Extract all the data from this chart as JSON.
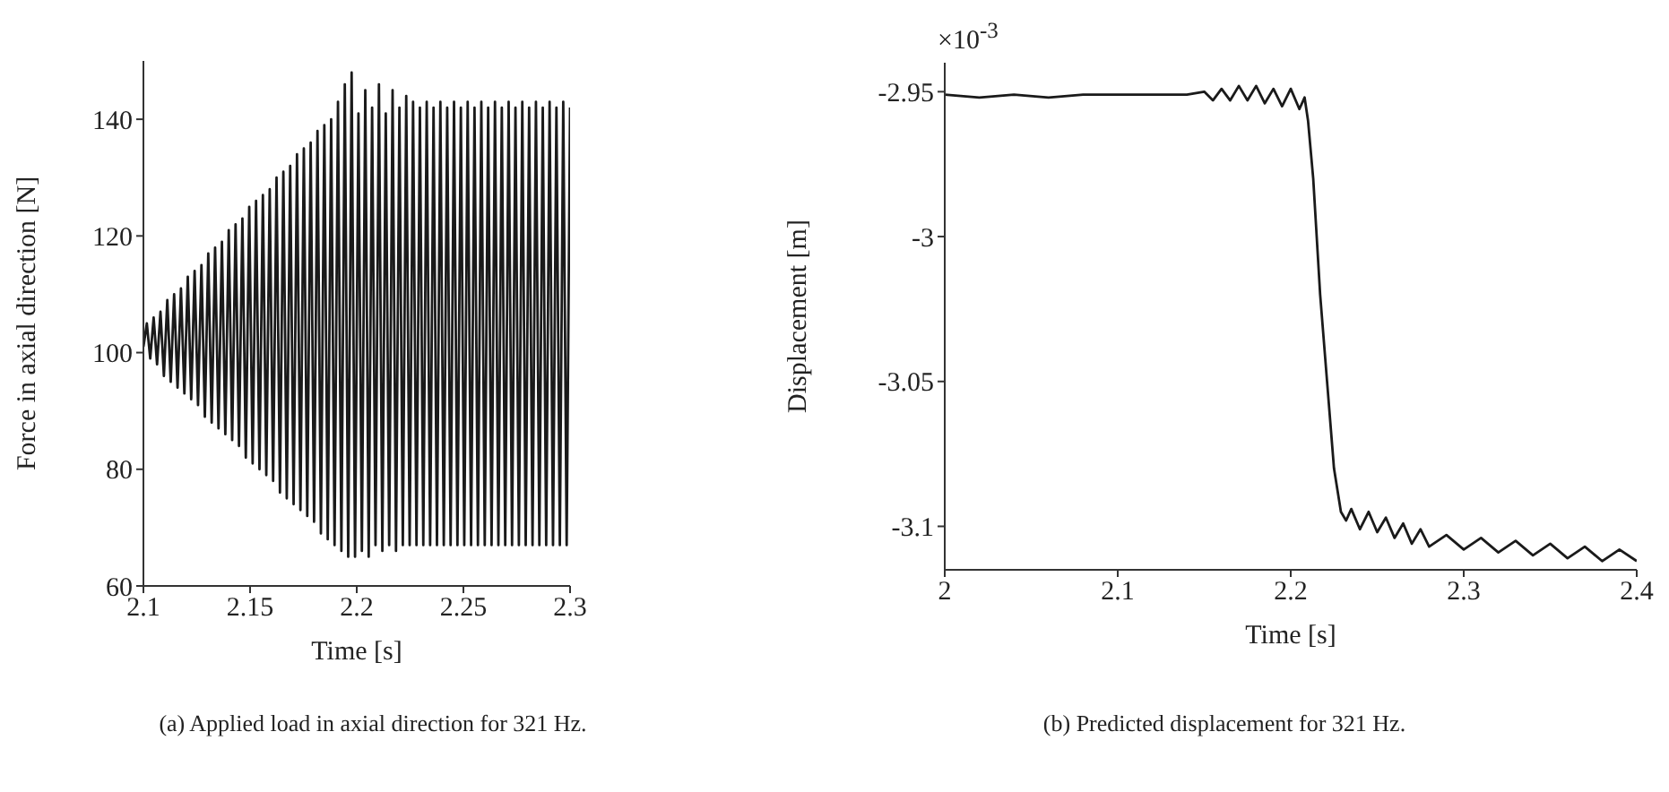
{
  "chart_data": [
    {
      "type": "line",
      "xlabel": "Time [s]",
      "ylabel": "Force in axial direction [N]",
      "xlim": [
        2.1,
        2.3
      ],
      "xticks": [
        2.1,
        2.15,
        2.2,
        2.25,
        2.3
      ],
      "ylim": [
        60,
        150
      ],
      "yticks": [
        60,
        80,
        100,
        120,
        140
      ],
      "annotations": [
        "(a)  Applied load in axial direction for 321 Hz."
      ],
      "series": [
        {
          "color": "#1a1a1a",
          "x": [
            2.1,
            2.1016,
            2.1032,
            2.1048,
            2.1064,
            2.108,
            2.1096,
            2.1112,
            2.1128,
            2.1144,
            2.116,
            2.1176,
            2.1192,
            2.1208,
            2.1224,
            2.124,
            2.1256,
            2.1272,
            2.1288,
            2.1304,
            2.132,
            2.1336,
            2.1352,
            2.1368,
            2.1384,
            2.14,
            2.1416,
            2.1432,
            2.1448,
            2.1464,
            2.148,
            2.1496,
            2.1512,
            2.1528,
            2.1544,
            2.156,
            2.1576,
            2.1592,
            2.1608,
            2.1624,
            2.164,
            2.1656,
            2.1672,
            2.1688,
            2.1704,
            2.172,
            2.1736,
            2.1752,
            2.1768,
            2.1784,
            2.18,
            2.1816,
            2.1832,
            2.1848,
            2.1864,
            2.188,
            2.1896,
            2.1912,
            2.1928,
            2.1944,
            2.196,
            2.1976,
            2.1992,
            2.2008,
            2.2024,
            2.204,
            2.2056,
            2.2072,
            2.2088,
            2.2104,
            2.212,
            2.2136,
            2.2152,
            2.2168,
            2.2184,
            2.22,
            2.2216,
            2.2232,
            2.2248,
            2.2264,
            2.228,
            2.2296,
            2.2312,
            2.2328,
            2.2344,
            2.236,
            2.2376,
            2.2392,
            2.2408,
            2.2424,
            2.244,
            2.2456,
            2.2472,
            2.2488,
            2.2504,
            2.252,
            2.2536,
            2.2552,
            2.2568,
            2.2584,
            2.26,
            2.2616,
            2.2632,
            2.2648,
            2.2664,
            2.268,
            2.2696,
            2.2712,
            2.2728,
            2.2744,
            2.276,
            2.2776,
            2.2792,
            2.2808,
            2.2824,
            2.284,
            2.2856,
            2.2872,
            2.2888,
            2.2904,
            2.292,
            2.2936,
            2.2952,
            2.2968,
            2.2984,
            2.3
          ],
          "values": [
            101,
            105,
            99,
            106,
            98,
            107,
            96,
            109,
            95,
            110,
            94,
            111,
            93,
            113,
            92,
            114,
            91,
            115,
            89,
            117,
            88,
            118,
            87,
            119,
            86,
            121,
            85,
            122,
            84,
            123,
            82,
            125,
            81,
            126,
            80,
            127,
            79,
            128,
            78,
            130,
            76,
            131,
            75,
            132,
            74,
            134,
            73,
            135,
            72,
            136,
            71,
            138,
            69,
            139,
            68,
            140,
            67,
            143,
            66,
            146,
            65,
            148,
            65,
            141,
            66,
            145,
            65,
            142,
            67,
            146,
            66,
            141,
            67,
            145,
            66,
            142,
            67,
            144,
            67,
            143,
            67,
            142,
            67,
            143,
            67,
            142,
            67,
            143,
            67,
            142,
            67,
            143,
            67,
            142,
            67,
            143,
            67,
            142,
            67,
            143,
            67,
            142,
            67,
            143,
            67,
            142,
            67,
            143,
            67,
            142,
            67,
            143,
            67,
            142,
            67,
            143,
            67,
            142,
            67,
            143,
            67,
            142,
            67,
            143,
            67,
            142
          ]
        }
      ]
    },
    {
      "type": "line",
      "xlabel": "Time [s]",
      "ylabel": "Displacement [m]",
      "xlim": [
        2,
        2.4
      ],
      "xticks": [
        2,
        2.1,
        2.2,
        2.3,
        2.4
      ],
      "ylim": [
        -3.115,
        -2.94
      ],
      "yticks": [
        -2.95,
        -3,
        -3.05,
        -3.1
      ],
      "annotations": [
        "×10$^{-3}$",
        "(b)  Predicted displacement for 321 Hz."
      ],
      "series": [
        {
          "color": "#1a1a1a",
          "x": [
            2.0,
            2.02,
            2.04,
            2.06,
            2.08,
            2.1,
            2.12,
            2.14,
            2.15,
            2.155,
            2.16,
            2.165,
            2.17,
            2.175,
            2.18,
            2.185,
            2.19,
            2.195,
            2.2,
            2.205,
            2.208,
            2.21,
            2.213,
            2.217,
            2.221,
            2.225,
            2.229,
            2.232,
            2.235,
            2.24,
            2.245,
            2.25,
            2.255,
            2.26,
            2.265,
            2.27,
            2.275,
            2.28,
            2.29,
            2.3,
            2.31,
            2.32,
            2.33,
            2.34,
            2.35,
            2.36,
            2.37,
            2.38,
            2.39,
            2.4
          ],
          "values": [
            -2.951,
            -2.952,
            -2.951,
            -2.952,
            -2.951,
            -2.951,
            -2.951,
            -2.951,
            -2.95,
            -2.953,
            -2.949,
            -2.953,
            -2.948,
            -2.953,
            -2.948,
            -2.954,
            -2.949,
            -2.955,
            -2.949,
            -2.956,
            -2.952,
            -2.96,
            -2.98,
            -3.02,
            -3.05,
            -3.08,
            -3.095,
            -3.098,
            -3.094,
            -3.101,
            -3.095,
            -3.102,
            -3.097,
            -3.104,
            -3.099,
            -3.106,
            -3.101,
            -3.107,
            -3.103,
            -3.108,
            -3.104,
            -3.109,
            -3.105,
            -3.11,
            -3.106,
            -3.111,
            -3.107,
            -3.112,
            -3.108,
            -3.112
          ]
        }
      ]
    }
  ]
}
